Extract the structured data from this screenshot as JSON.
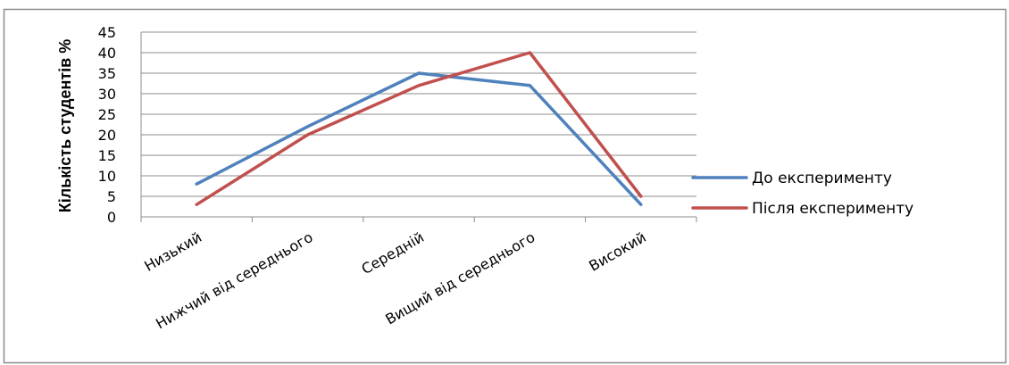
{
  "chart_data": {
    "type": "line",
    "title": "",
    "xlabel": "",
    "ylabel": "Кількість студентів %",
    "categories": [
      "Низький",
      "Нижчий від середнього",
      "Середній",
      "Вищий від середнього",
      "Високий"
    ],
    "series": [
      {
        "name": "До експерименту",
        "color": "#4f81bd",
        "values": [
          8,
          22,
          35,
          32,
          3
        ]
      },
      {
        "name": "Після експерименту",
        "color": "#c0504d",
        "values": [
          3,
          20,
          32,
          40,
          5
        ]
      }
    ],
    "ylim": [
      0,
      45
    ],
    "yticks": [
      0,
      5,
      10,
      15,
      20,
      25,
      30,
      35,
      40,
      45
    ],
    "grid": true,
    "legend": "right"
  }
}
